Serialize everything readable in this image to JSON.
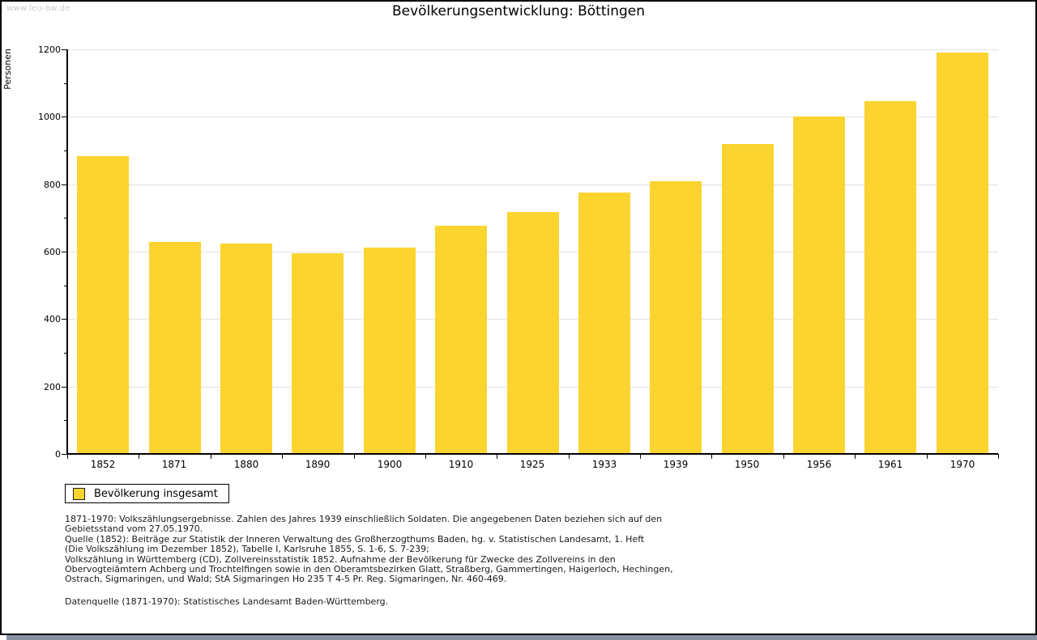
{
  "window": {
    "watermark": "www.leo-bw.de"
  },
  "chart_data": {
    "type": "bar",
    "title": "Bevölkerungsentwicklung: Böttingen",
    "xlabel": "",
    "ylabel": "Personen",
    "categories": [
      "1852",
      "1871",
      "1880",
      "1890",
      "1900",
      "1910",
      "1925",
      "1933",
      "1939",
      "1950",
      "1956",
      "1961",
      "1970"
    ],
    "values": [
      883,
      630,
      625,
      596,
      611,
      677,
      718,
      776,
      809,
      920,
      1002,
      1047,
      1190
    ],
    "ylim": [
      0,
      1200
    ],
    "ytick_step": 200,
    "yminor_step": 100,
    "grid": "horizontal",
    "bar_color": "#FCD42F",
    "legend": {
      "label": "Bevölkerung insgesamt",
      "position": "bottom-left"
    }
  },
  "footnotes": {
    "lines": [
      "1871-1970: Volkszählungsergebnisse. Zahlen des Jahres 1939 einschließlich Soldaten. Die angegebenen Daten beziehen sich auf den",
      "Gebietsstand vom 27.05.1970.",
      "Quelle (1852): Beiträge zur Statistik der Inneren Verwaltung des Großherzogthums Baden, hg. v. Statistischen Landesamt, 1. Heft",
      "(Die Volkszählung im Dezember 1852), Tabelle I, Karlsruhe 1855, S. 1-6, S. 7-239;",
      "Volkszählung in Württemberg (CD), Zollvereinsstatistik 1852. Aufnahme der Bevölkerung für Zwecke des Zollvereins in den",
      "Obervogteiämtern Achberg und Trochtelfingen sowie in den Oberamtsbezirken Glatt, Straßberg, Gammertingen, Haigerloch, Hechingen,",
      "Ostrach, Sigmaringen, und Wald; StA Sigmaringen Ho 235 T 4-5 Pr. Reg. Sigmaringen, Nr. 460-469."
    ],
    "datasource": "Datenquelle (1871-1970): Statistisches Landesamt Baden-Württemberg."
  },
  "colors": {
    "bar": "#FCD42F",
    "gridline": "#e2e2e2",
    "axis": "#000000",
    "watermark": "#cbcbcb",
    "bottom_shadow": "#8692a4"
  }
}
